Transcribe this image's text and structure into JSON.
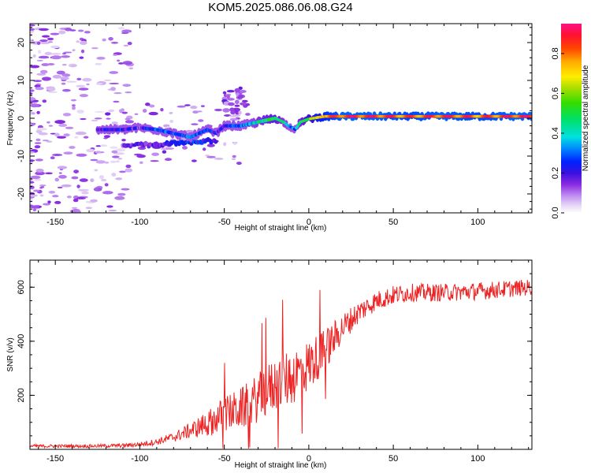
{
  "title": "KOM5.2025.086.06.08.G24",
  "chart_data": [
    {
      "type": "heatmap",
      "xlabel": "Height of straight line (km)",
      "ylabel": "Frequency (Hz)",
      "xlim": [
        -165,
        132
      ],
      "ylim": [
        -25,
        25
      ],
      "xticks": [
        -150,
        -100,
        -50,
        0,
        50,
        100
      ],
      "yticks": [
        -20,
        -10,
        0,
        10,
        20
      ],
      "colorbar": {
        "label": "Normalized spectral amplitude",
        "range": [
          0,
          0.95
        ],
        "ticks": [
          "0.0",
          "0.2",
          "0.4",
          "0.6",
          "0.8"
        ],
        "colormap": "rainbow (white-lavender-violet-blue-cyan-green-yellow-red-magenta)"
      },
      "ridge": {
        "description": "Dominant frequency track of normalized spectral amplitude",
        "x": [
          -125,
          -110,
          -100,
          -90,
          -80,
          -70,
          -60,
          -55,
          -50,
          -45,
          -40,
          -35,
          -30,
          -25,
          -20,
          -15,
          -12,
          -8,
          -5,
          0,
          5,
          10,
          20,
          40,
          60,
          80,
          100,
          120,
          132
        ],
        "frequency": [
          -3,
          -3,
          -2.5,
          -3,
          -4,
          -5,
          -3,
          -4,
          -2,
          -2,
          -2,
          -1.5,
          -1,
          -0.5,
          0,
          -1,
          -2,
          -3,
          -1,
          -0.2,
          0.2,
          0.5,
          0.5,
          0.5,
          0.5,
          0.5,
          0.5,
          0.5,
          0.5
        ],
        "amplitude": [
          0.2,
          0.2,
          0.15,
          0.3,
          0.25,
          0.3,
          0.25,
          0.2,
          0.2,
          0.3,
          0.3,
          0.35,
          0.4,
          0.45,
          0.5,
          0.4,
          0.35,
          0.3,
          0.45,
          0.55,
          0.65,
          0.75,
          0.85,
          0.85,
          0.8,
          0.85,
          0.8,
          0.85,
          0.85
        ]
      },
      "secondary_branch": {
        "x": [
          -110,
          -100,
          -90,
          -80,
          -70,
          -60,
          -55
        ],
        "frequency": [
          -7,
          -7,
          -7,
          -6.5,
          -6.5,
          -6,
          -6
        ],
        "amplitude": [
          0.15,
          0.2,
          0.2,
          0.25,
          0.3,
          0.25,
          0.2
        ]
      }
    },
    {
      "type": "line",
      "xlabel": "Height of straight line (km)",
      "ylabel": "SNR (v/v)",
      "xlim": [
        -165,
        132
      ],
      "ylim": [
        0,
        700
      ],
      "xticks": [
        -150,
        -100,
        -50,
        0,
        50,
        100
      ],
      "yticks": [
        200,
        400,
        600
      ],
      "color": "#ee2222",
      "envelope": {
        "x": [
          -165,
          -130,
          -110,
          -100,
          -90,
          -80,
          -70,
          -60,
          -50,
          -40,
          -30,
          -20,
          -10,
          0,
          10,
          20,
          30,
          40,
          50,
          60,
          80,
          100,
          132
        ],
        "mean": [
          12,
          12,
          14,
          18,
          28,
          45,
          70,
          95,
          130,
          150,
          190,
          240,
          270,
          310,
          370,
          450,
          510,
          550,
          570,
          580,
          580,
          585,
          600
        ],
        "spread": [
          10,
          10,
          12,
          15,
          20,
          30,
          50,
          80,
          110,
          130,
          150,
          170,
          180,
          160,
          130,
          90,
          70,
          60,
          60,
          55,
          55,
          55,
          50
        ]
      }
    }
  ]
}
